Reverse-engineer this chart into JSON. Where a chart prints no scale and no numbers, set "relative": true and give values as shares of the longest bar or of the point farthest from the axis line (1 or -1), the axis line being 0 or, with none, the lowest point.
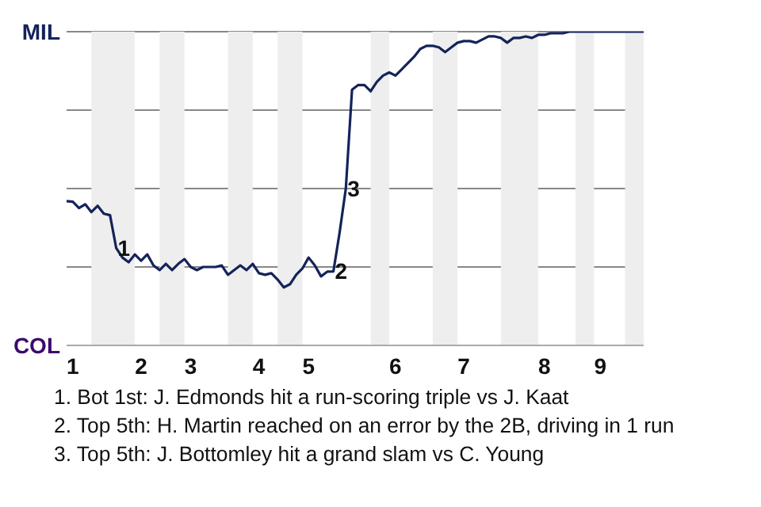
{
  "chart_data": {
    "type": "line",
    "relative": true,
    "categories": [
      null,
      "1",
      null,
      null,
      null,
      null,
      null,
      null,
      null,
      null,
      null,
      null,
      "2",
      null,
      null,
      null,
      null,
      null,
      null,
      null,
      "3",
      null,
      null,
      null,
      null,
      null,
      null,
      null,
      null,
      null,
      null,
      "4",
      null,
      null,
      null,
      null,
      null,
      null,
      null,
      "5",
      null,
      null,
      null,
      null,
      null,
      null,
      null,
      null,
      null,
      null,
      null,
      null,
      null,
      "6",
      null,
      null,
      null,
      null,
      null,
      null,
      null,
      null,
      null,
      null,
      "7",
      null,
      null,
      null,
      null,
      null,
      null,
      null,
      null,
      null,
      null,
      null,
      null,
      "8",
      null,
      null,
      null,
      null,
      null,
      null,
      null,
      null,
      "9",
      null,
      null,
      null,
      null,
      null,
      null,
      null
    ],
    "series": [
      {
        "color": "#14235a",
        "values": [
          0.46,
          0.458,
          0.438,
          0.45,
          0.425,
          0.445,
          0.42,
          0.415,
          0.31,
          0.28,
          0.265,
          0.29,
          0.27,
          0.29,
          0.255,
          0.24,
          0.26,
          0.24,
          0.26,
          0.275,
          0.25,
          0.24,
          0.25,
          0.25,
          0.25,
          0.255,
          0.225,
          0.24,
          0.255,
          0.24,
          0.26,
          0.23,
          0.225,
          0.23,
          0.21,
          0.185,
          0.195,
          0.225,
          0.245,
          0.28,
          0.255,
          0.22,
          0.235,
          0.236,
          0.36,
          0.5,
          0.815,
          0.83,
          0.83,
          0.81,
          0.84,
          0.86,
          0.87,
          0.86,
          0.88,
          0.9,
          0.92,
          0.945,
          0.955,
          0.955,
          0.95,
          0.935,
          0.95,
          0.965,
          0.97,
          0.97,
          0.965,
          0.975,
          0.985,
          0.985,
          0.98,
          0.965,
          0.98,
          0.98,
          0.985,
          0.98,
          0.99,
          0.99,
          0.995,
          0.995,
          0.995,
          1,
          1,
          1,
          1,
          1,
          1,
          1,
          1,
          1,
          1,
          1,
          1,
          1
        ]
      }
    ],
    "grid": "y",
    "line_style": "solid",
    "annotations": [
      {
        "text": "1",
        "y": 0.31
      },
      {
        "text": "2",
        "y": 0.236
      },
      {
        "text": "3",
        "y": 0.5
      },
      "MIL",
      "COL",
      "1. Bot 1st: J. Edmonds hit a run-scoring triple vs J. Kaat",
      "2. Top 5th: H. Martin reached on an error by the 2B, driving in 1 run",
      "3. Top 5th: J. Bottomley hit a grand slam vs C. Young"
    ]
  }
}
